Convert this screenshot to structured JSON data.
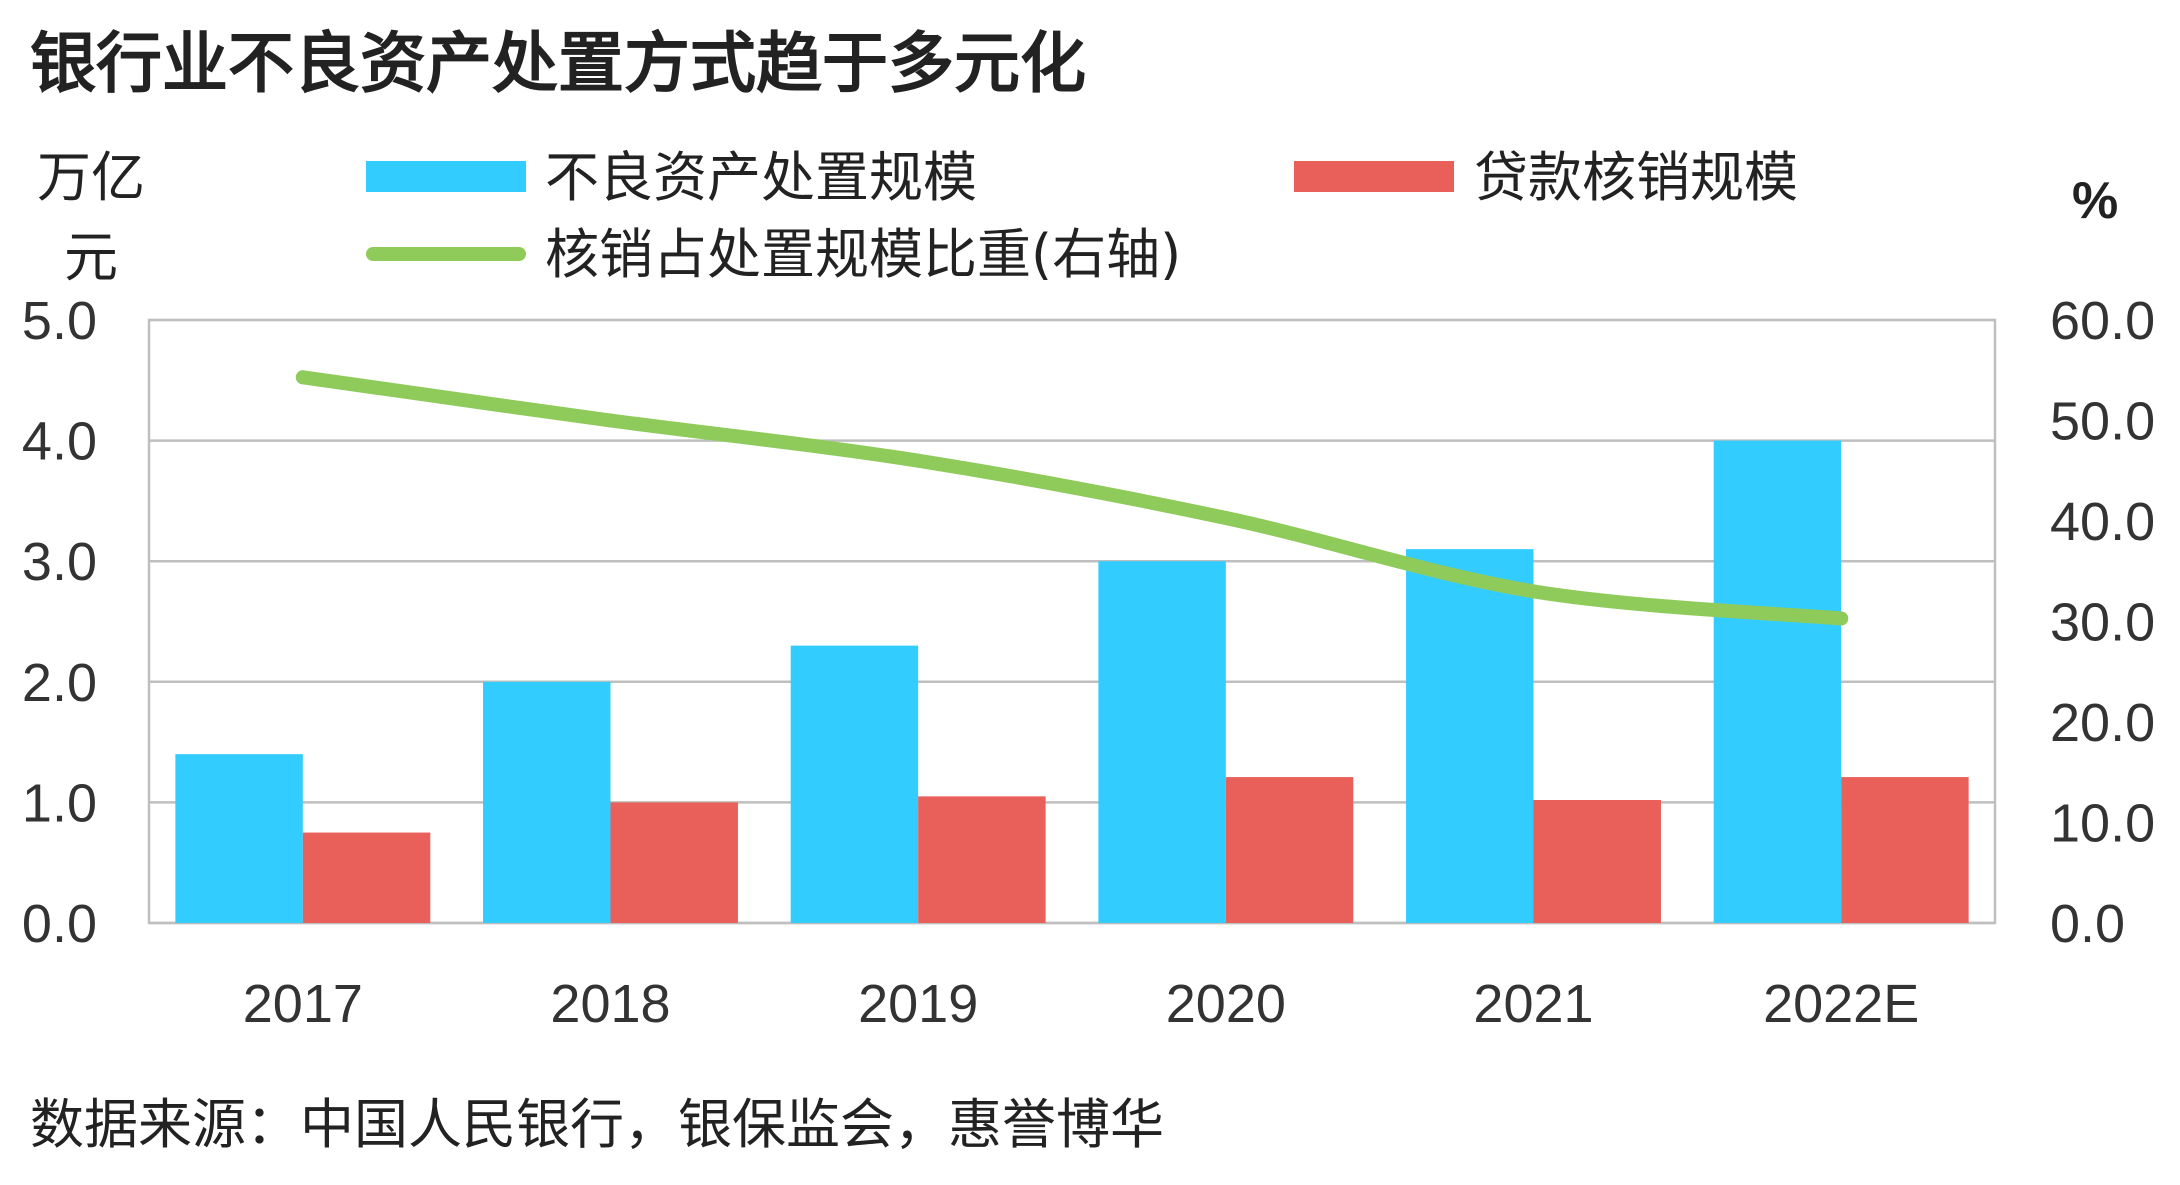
{
  "chart_data": {
    "type": "bar",
    "title": "银行业不良资产处置方式趋于多元化",
    "categories": [
      "2017",
      "2018",
      "2019",
      "2020",
      "2021",
      "2022E"
    ],
    "series": [
      {
        "name": "不良资产处置规模",
        "type": "bar",
        "axis": "left",
        "color": "#33CCFF",
        "values": [
          1.4,
          2.0,
          2.3,
          3.0,
          3.1,
          4.0
        ]
      },
      {
        "name": "贷款核销规模",
        "type": "bar",
        "axis": "left",
        "color": "#E9605B",
        "values": [
          0.75,
          1.0,
          1.05,
          1.21,
          1.02,
          1.21
        ]
      },
      {
        "name": "核销占处置规模比重(右轴)",
        "type": "line",
        "axis": "right",
        "color": "#8FCB5B",
        "values": [
          54.3,
          50.0,
          46.0,
          40.3,
          33.0,
          30.3
        ]
      }
    ],
    "ylabel": "万亿元",
    "y2label": "%",
    "ylim": [
      0,
      5
    ],
    "y2lim": [
      0,
      60
    ],
    "yticks": [
      "0.0",
      "1.0",
      "2.0",
      "3.0",
      "4.0",
      "5.0"
    ],
    "y2ticks": [
      "0.0",
      "10.0",
      "20.0",
      "30.0",
      "40.0",
      "50.0",
      "60.0"
    ],
    "grid": true,
    "grid_color": "#BFBFBF",
    "legend": "top"
  },
  "source": "数据来源：中国人民银行，银保监会，惠誉博华"
}
